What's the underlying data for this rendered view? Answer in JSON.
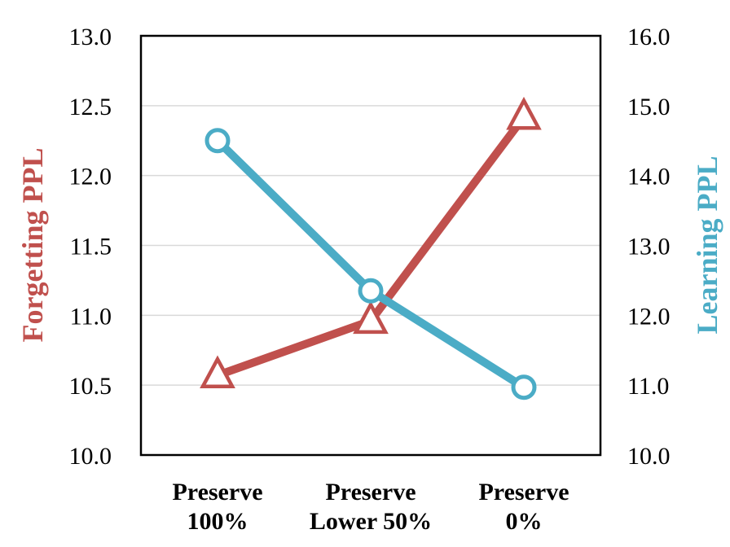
{
  "chart_data": {
    "type": "line",
    "categories": [
      [
        "Preserve",
        "100%"
      ],
      [
        "Preserve",
        "Lower 50%"
      ],
      [
        "Preserve",
        "0%"
      ]
    ],
    "series": [
      {
        "name": "Forgetting PPL",
        "axis": "left",
        "color": "#c0504d",
        "marker": "triangle",
        "values": [
          10.57,
          10.96,
          12.42
        ]
      },
      {
        "name": "Learning PPL",
        "axis": "right",
        "color": "#4bacc6",
        "marker": "circle",
        "values": [
          14.5,
          12.35,
          10.97
        ]
      }
    ],
    "y_left": {
      "label": "Forgetting PPL",
      "min": 10.0,
      "max": 13.0,
      "ticks": [
        "10.0",
        "10.5",
        "11.0",
        "11.5",
        "12.0",
        "12.5",
        "13.0"
      ]
    },
    "y_right": {
      "label": "Learning PPL",
      "min": 10.0,
      "max": 16.0,
      "ticks": [
        "10.0",
        "11.0",
        "12.0",
        "13.0",
        "14.0",
        "15.0",
        "16.0"
      ]
    },
    "gridlines": true,
    "legend": "none"
  }
}
